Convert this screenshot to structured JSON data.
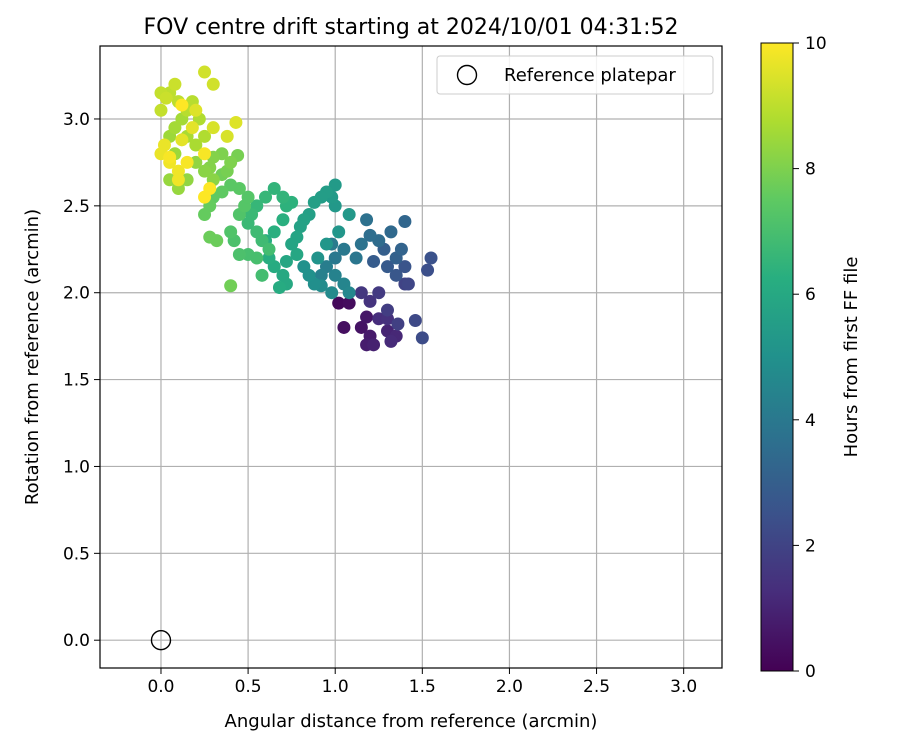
{
  "chart_data": {
    "type": "scatter",
    "title": "FOV centre drift starting at 2024/10/01 04:31:52",
    "xlabel": "Angular distance from reference (arcmin)",
    "ylabel": "Rotation from reference (arcmin)",
    "xlim": [
      -0.35,
      3.22
    ],
    "ylim": [
      -0.16,
      3.42
    ],
    "xticks": [
      "0.0",
      "0.5",
      "1.0",
      "1.5",
      "2.0",
      "2.5",
      "3.0"
    ],
    "yticks": [
      "0.0",
      "0.5",
      "1.0",
      "1.5",
      "2.0",
      "2.5",
      "3.0"
    ],
    "grid": true,
    "legend": {
      "placement": "top-right",
      "label": "Reference platepar"
    },
    "reference_point": {
      "x": 0.0,
      "y": 0.0
    },
    "colorbar": {
      "label": "Hours from first FF file",
      "colormap": "viridis",
      "range": [
        0,
        10
      ],
      "ticks": [
        "0",
        "2",
        "4",
        "6",
        "8",
        "10"
      ]
    },
    "points": [
      [
        1.02,
        1.94,
        0.2
      ],
      [
        1.08,
        1.94,
        0.3
      ],
      [
        1.05,
        1.8,
        0.4
      ],
      [
        1.15,
        1.8,
        0.5
      ],
      [
        1.18,
        1.86,
        0.6
      ],
      [
        1.2,
        1.75,
        0.7
      ],
      [
        1.18,
        1.7,
        0.8
      ],
      [
        1.22,
        1.7,
        0.9
      ],
      [
        1.3,
        1.78,
        1.0
      ],
      [
        1.35,
        1.75,
        1.1
      ],
      [
        1.32,
        1.72,
        1.2
      ],
      [
        1.25,
        1.85,
        1.3
      ],
      [
        1.3,
        1.85,
        1.4
      ],
      [
        1.2,
        1.95,
        1.5
      ],
      [
        1.15,
        2.0,
        1.6
      ],
      [
        1.25,
        2.0,
        1.7
      ],
      [
        1.3,
        1.9,
        1.8
      ],
      [
        1.36,
        1.82,
        1.9
      ],
      [
        1.4,
        2.05,
        2.0
      ],
      [
        1.42,
        2.05,
        2.1
      ],
      [
        1.46,
        1.84,
        2.2
      ],
      [
        1.5,
        1.74,
        2.3
      ],
      [
        1.53,
        2.13,
        2.4
      ],
      [
        1.55,
        2.2,
        2.5
      ],
      [
        1.4,
        2.15,
        2.6
      ],
      [
        1.35,
        2.1,
        2.7
      ],
      [
        1.3,
        2.15,
        2.8
      ],
      [
        1.22,
        2.18,
        2.9
      ],
      [
        1.28,
        2.25,
        3.0
      ],
      [
        1.35,
        2.2,
        3.1
      ],
      [
        1.38,
        2.25,
        3.2
      ],
      [
        1.4,
        2.41,
        3.3
      ],
      [
        1.32,
        2.35,
        3.4
      ],
      [
        1.25,
        2.3,
        3.5
      ],
      [
        1.2,
        2.33,
        3.6
      ],
      [
        1.18,
        2.42,
        3.7
      ],
      [
        1.15,
        2.28,
        3.8
      ],
      [
        1.12,
        2.2,
        3.9
      ],
      [
        1.05,
        2.25,
        4.0
      ],
      [
        1.0,
        2.2,
        4.0
      ],
      [
        0.98,
        2.28,
        4.1
      ],
      [
        0.95,
        2.15,
        4.2
      ],
      [
        0.92,
        2.1,
        4.3
      ],
      [
        1.0,
        2.1,
        4.4
      ],
      [
        1.05,
        2.05,
        4.5
      ],
      [
        1.08,
        2.0,
        4.6
      ],
      [
        0.98,
        2.0,
        4.7
      ],
      [
        0.92,
        2.04,
        4.8
      ],
      [
        0.88,
        2.05,
        4.9
      ],
      [
        0.85,
        2.1,
        5.0
      ],
      [
        0.82,
        2.15,
        5.0
      ],
      [
        0.9,
        2.2,
        5.1
      ],
      [
        0.95,
        2.28,
        5.2
      ],
      [
        1.02,
        2.35,
        5.2
      ],
      [
        1.08,
        2.45,
        5.3
      ],
      [
        1.0,
        2.5,
        5.3
      ],
      [
        0.98,
        2.55,
        5.4
      ],
      [
        1.0,
        2.62,
        5.4
      ],
      [
        0.95,
        2.58,
        5.5
      ],
      [
        0.92,
        2.55,
        5.5
      ],
      [
        0.88,
        2.52,
        5.6
      ],
      [
        0.85,
        2.45,
        5.6
      ],
      [
        0.82,
        2.42,
        5.7
      ],
      [
        0.8,
        2.38,
        5.7
      ],
      [
        0.78,
        2.32,
        5.8
      ],
      [
        0.75,
        2.28,
        5.8
      ],
      [
        0.78,
        2.22,
        5.9
      ],
      [
        0.72,
        2.18,
        5.9
      ],
      [
        0.7,
        2.1,
        6.0
      ],
      [
        0.72,
        2.05,
        6.0
      ],
      [
        0.68,
        2.03,
        6.1
      ],
      [
        0.65,
        2.15,
        6.1
      ],
      [
        0.62,
        2.2,
        6.2
      ],
      [
        0.6,
        2.3,
        6.2
      ],
      [
        0.65,
        2.35,
        6.3
      ],
      [
        0.7,
        2.42,
        6.3
      ],
      [
        0.72,
        2.5,
        6.4
      ],
      [
        0.75,
        2.52,
        6.4
      ],
      [
        0.7,
        2.55,
        6.5
      ],
      [
        0.65,
        2.6,
        6.5
      ],
      [
        0.6,
        2.55,
        6.6
      ],
      [
        0.55,
        2.5,
        6.6
      ],
      [
        0.52,
        2.45,
        6.7
      ],
      [
        0.5,
        2.4,
        6.7
      ],
      [
        0.55,
        2.35,
        6.8
      ],
      [
        0.58,
        2.3,
        6.8
      ],
      [
        0.62,
        2.25,
        6.9
      ],
      [
        0.58,
        2.1,
        6.9
      ],
      [
        0.55,
        2.2,
        7.0
      ],
      [
        0.5,
        2.22,
        7.0
      ],
      [
        0.45,
        2.22,
        7.1
      ],
      [
        0.42,
        2.3,
        7.1
      ],
      [
        0.4,
        2.35,
        7.2
      ],
      [
        0.45,
        2.45,
        7.2
      ],
      [
        0.48,
        2.5,
        7.3
      ],
      [
        0.5,
        2.55,
        7.3
      ],
      [
        0.45,
        2.6,
        7.4
      ],
      [
        0.4,
        2.62,
        7.4
      ],
      [
        0.35,
        2.58,
        7.5
      ],
      [
        0.3,
        2.55,
        7.5
      ],
      [
        0.28,
        2.5,
        7.6
      ],
      [
        0.25,
        2.45,
        7.6
      ],
      [
        0.28,
        2.32,
        7.7
      ],
      [
        0.32,
        2.3,
        7.7
      ],
      [
        0.4,
        2.04,
        7.8
      ],
      [
        0.35,
        2.68,
        7.8
      ],
      [
        0.38,
        2.7,
        7.9
      ],
      [
        0.44,
        2.79,
        7.9
      ],
      [
        0.4,
        2.75,
        8.0
      ],
      [
        0.35,
        2.8,
        8.0
      ],
      [
        0.3,
        2.78,
        8.1
      ],
      [
        0.28,
        2.72,
        8.1
      ],
      [
        0.3,
        2.65,
        8.2
      ],
      [
        0.25,
        2.7,
        8.2
      ],
      [
        0.2,
        2.75,
        8.3
      ],
      [
        0.15,
        2.65,
        8.3
      ],
      [
        0.1,
        2.6,
        8.4
      ],
      [
        0.05,
        2.65,
        8.4
      ],
      [
        0.08,
        2.8,
        8.5
      ],
      [
        0.05,
        2.9,
        8.5
      ],
      [
        0.08,
        2.95,
        8.6
      ],
      [
        0.12,
        3.0,
        8.6
      ],
      [
        0.15,
        2.9,
        8.7
      ],
      [
        0.2,
        2.85,
        8.7
      ],
      [
        0.25,
        2.9,
        8.8
      ],
      [
        0.22,
        3.0,
        8.8
      ],
      [
        0.18,
        3.1,
        8.9
      ],
      [
        0.15,
        3.05,
        8.9
      ],
      [
        0.1,
        3.1,
        9.0
      ],
      [
        0.05,
        3.15,
        9.0
      ],
      [
        0.0,
        3.15,
        9.1
      ],
      [
        0.0,
        3.05,
        9.1
      ],
      [
        0.03,
        3.12,
        9.2
      ],
      [
        0.08,
        3.2,
        9.2
      ],
      [
        0.25,
        3.27,
        9.3
      ],
      [
        0.3,
        3.2,
        9.3
      ],
      [
        0.3,
        2.95,
        9.4
      ],
      [
        0.38,
        2.9,
        9.4
      ],
      [
        0.43,
        2.98,
        9.5
      ],
      [
        0.2,
        3.05,
        9.5
      ],
      [
        0.18,
        2.95,
        9.6
      ],
      [
        0.12,
        2.88,
        9.6
      ],
      [
        0.02,
        2.85,
        9.7
      ],
      [
        0.0,
        2.8,
        9.7
      ],
      [
        0.05,
        2.75,
        9.8
      ],
      [
        0.1,
        2.7,
        9.8
      ],
      [
        0.15,
        2.75,
        9.9
      ],
      [
        0.25,
        2.8,
        9.9
      ],
      [
        0.28,
        2.6,
        10.0
      ],
      [
        0.25,
        2.55,
        10.0
      ],
      [
        0.1,
        2.65,
        9.8
      ],
      [
        0.05,
        2.78,
        9.9
      ],
      [
        0.12,
        3.08,
        10.0
      ]
    ]
  }
}
